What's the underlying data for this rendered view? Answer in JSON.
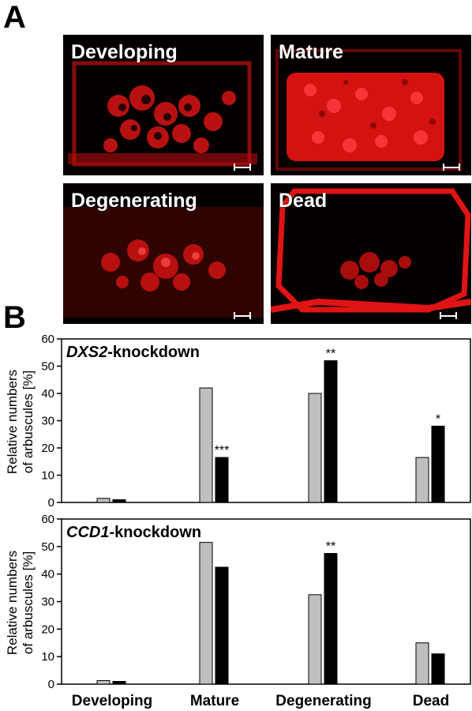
{
  "panel_a": {
    "letter": "A",
    "images": [
      {
        "label": "Developing"
      },
      {
        "label": "Mature"
      },
      {
        "label": "Degenerating"
      },
      {
        "label": "Dead"
      }
    ]
  },
  "panel_b": {
    "letter": "B",
    "ylabel_line1": "Relative numbers",
    "ylabel_line2": "of arbuscules [%]",
    "x_categories": [
      "Developing",
      "Mature",
      "Degenerating",
      "Dead"
    ]
  },
  "colors": {
    "control": "#bfbfbf",
    "knockdown": "#000000",
    "fluorescence": "#e01010"
  },
  "chart_data": [
    {
      "type": "bar",
      "title_italic": "DXS2",
      "title_rest": "-knockdown",
      "categories": [
        "Developing",
        "Mature",
        "Degenerating",
        "Dead"
      ],
      "series": [
        {
          "values": [
            1.5,
            42,
            40,
            16.5
          ]
        },
        {
          "values": [
            1,
            16.5,
            52,
            28
          ]
        }
      ],
      "significance": [
        "",
        "***",
        "**",
        "*"
      ],
      "ylim": [
        0,
        60
      ],
      "yticks": [
        0,
        10,
        20,
        30,
        40,
        50,
        60
      ]
    },
    {
      "type": "bar",
      "title_italic": "CCD1",
      "title_rest": "-knockdown",
      "categories": [
        "Developing",
        "Mature",
        "Degenerating",
        "Dead"
      ],
      "series": [
        {
          "values": [
            1.3,
            51.5,
            32.5,
            15
          ]
        },
        {
          "values": [
            1,
            42.5,
            47.5,
            11
          ]
        }
      ],
      "significance": [
        "",
        "",
        "**",
        ""
      ],
      "ylim": [
        0,
        60
      ],
      "yticks": [
        0,
        10,
        20,
        30,
        40,
        50,
        60
      ]
    }
  ]
}
